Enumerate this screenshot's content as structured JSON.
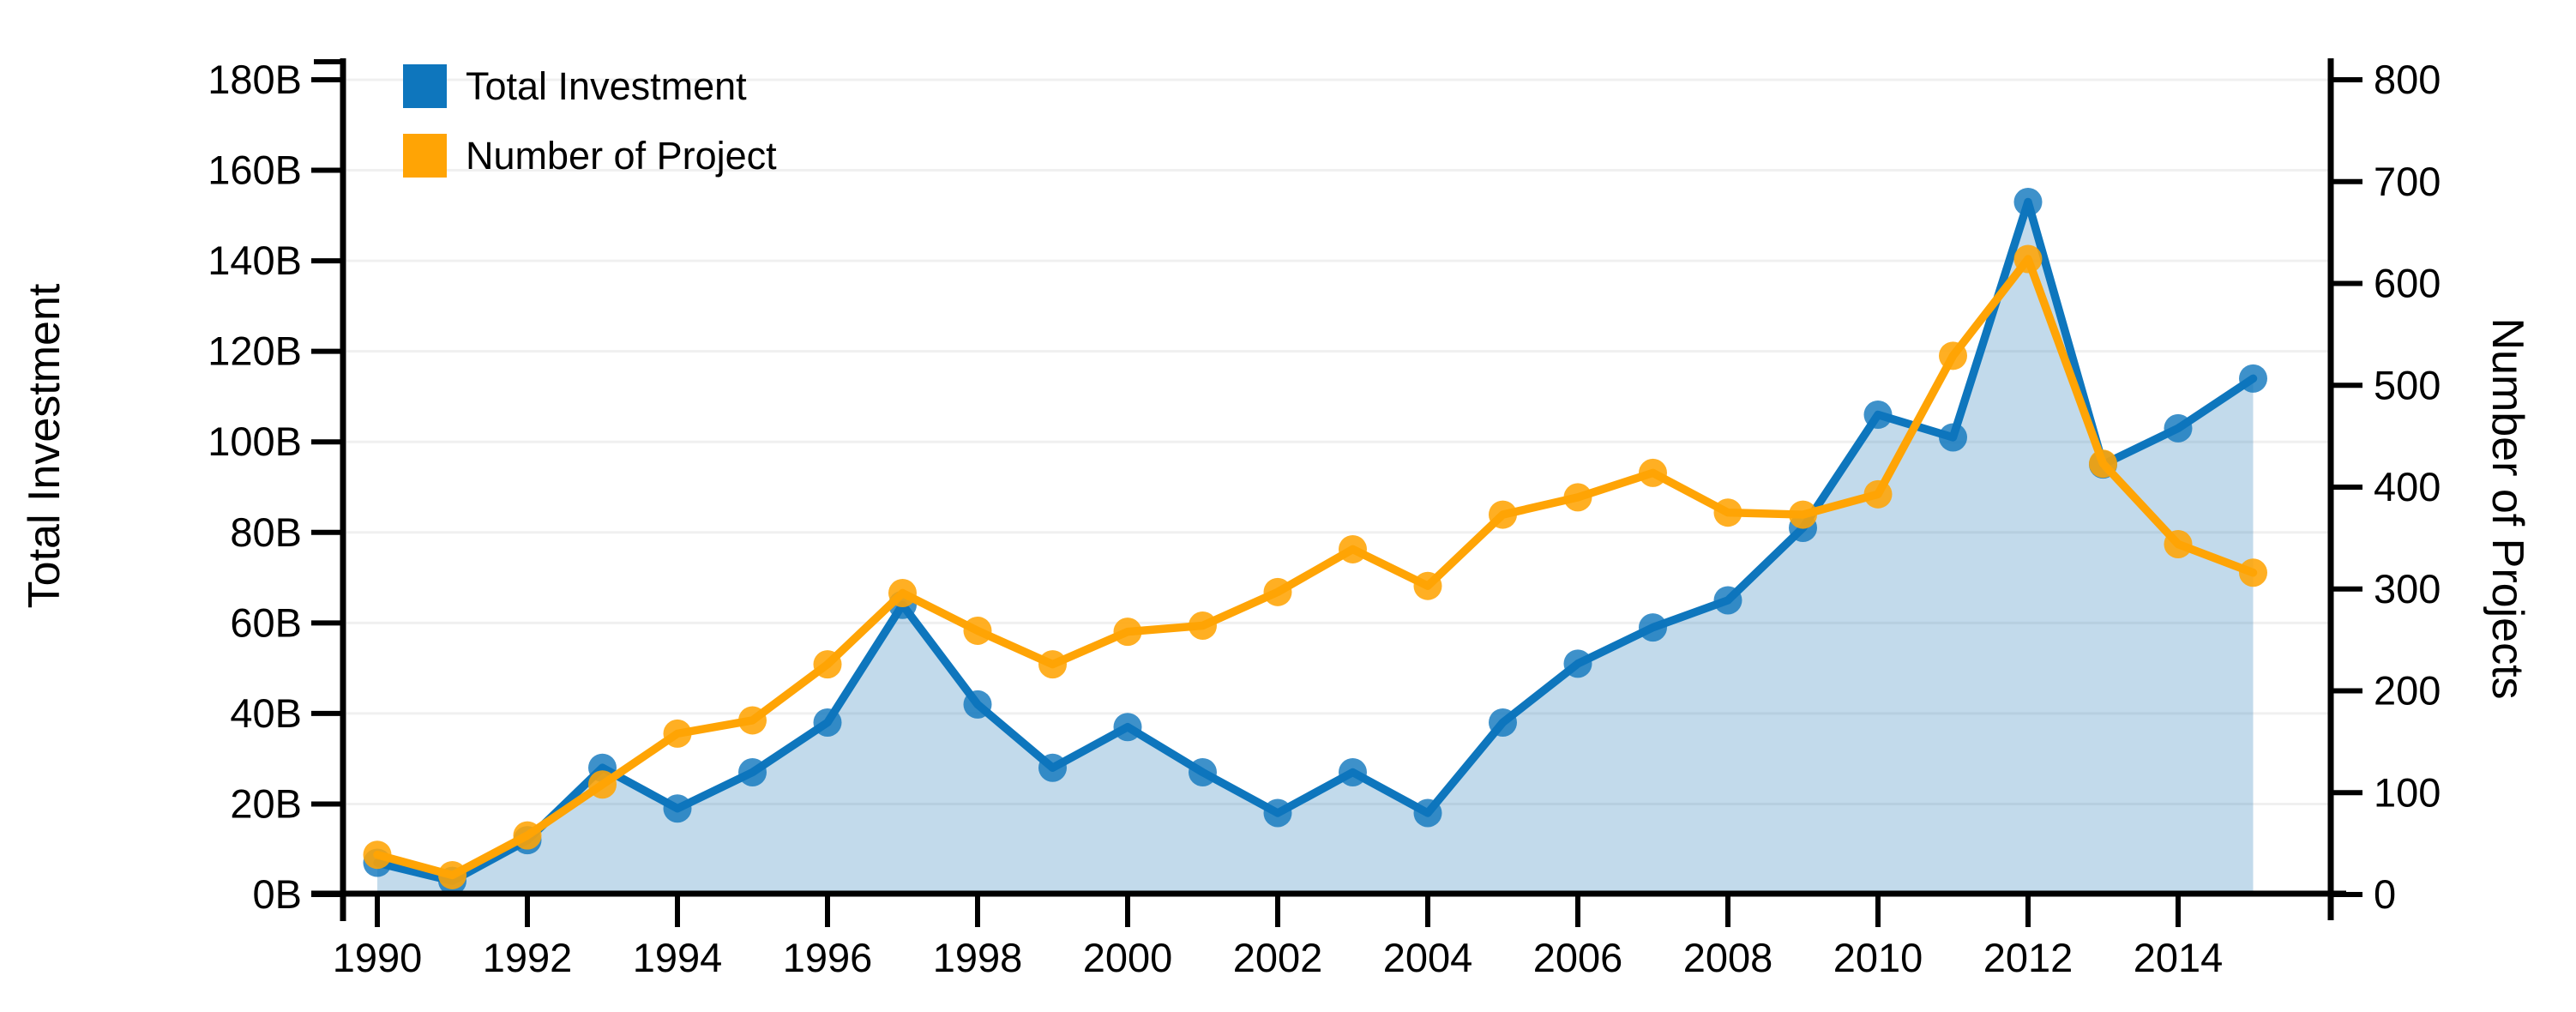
{
  "chart_data": {
    "type": "line",
    "title": "",
    "x": [
      1990,
      1991,
      1992,
      1993,
      1994,
      1995,
      1996,
      1997,
      1998,
      1999,
      2000,
      2001,
      2002,
      2003,
      2004,
      2005,
      2006,
      2007,
      2008,
      2009,
      2010,
      2011,
      2012,
      2013,
      2014,
      2015
    ],
    "series": [
      {
        "name": "Total Investment",
        "axis": "left",
        "color": "#0E76BD",
        "marker": "circle",
        "area_fill": true,
        "area_color": "rgba(31,119,180,0.27)",
        "values": [
          7,
          3,
          12,
          28,
          19,
          27,
          38,
          64,
          42,
          28,
          37,
          27,
          18,
          27,
          18,
          38,
          51,
          59,
          65,
          81,
          106,
          101,
          153,
          95,
          103,
          114
        ]
      },
      {
        "name": "Number of Project",
        "axis": "right",
        "color": "#FFA405",
        "marker": "circle",
        "area_fill": false,
        "values": [
          39,
          19,
          58,
          108,
          158,
          171,
          226,
          296,
          259,
          226,
          258,
          264,
          297,
          339,
          303,
          373,
          390,
          414,
          375,
          373,
          393,
          529,
          624,
          423,
          344,
          316
        ]
      }
    ],
    "left_axis": {
      "title": "Total Investment",
      "min": 0,
      "max": 180,
      "tick_step": 20,
      "tick_labels": [
        "0B",
        "20B",
        "40B",
        "60B",
        "80B",
        "100B",
        "120B",
        "140B",
        "160B",
        "180B"
      ]
    },
    "right_axis": {
      "title": "Number of Projects",
      "min": 0,
      "max": 800,
      "tick_step": 100,
      "tick_labels": [
        "0",
        "100",
        "200",
        "300",
        "400",
        "500",
        "600",
        "700",
        "800"
      ]
    },
    "x_axis": {
      "tick_years": [
        1990,
        1992,
        1994,
        1996,
        1998,
        2000,
        2002,
        2004,
        2006,
        2008,
        2010,
        2012,
        2014
      ]
    },
    "legend": {
      "position": "top-left",
      "items": [
        {
          "label": "Total Investment",
          "color": "#0E76BD"
        },
        {
          "label": "Number of Project",
          "color": "#FFA405"
        }
      ]
    },
    "grid": {
      "orientation": "horizontal",
      "left_axis_step": 20,
      "color": "#F0F0F0"
    },
    "axis_color": "#000000",
    "background": "#FFFFFF"
  }
}
